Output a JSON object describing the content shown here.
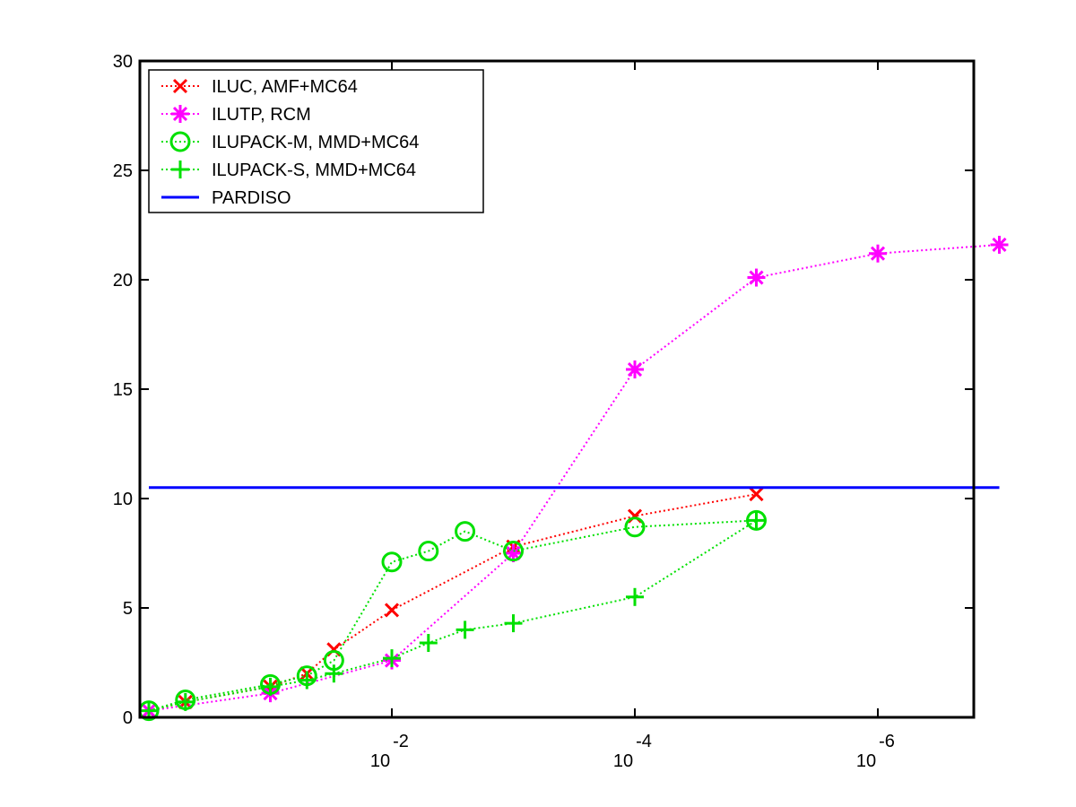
{
  "chart_data": {
    "type": "line",
    "title": "",
    "xlabel": "",
    "ylabel": "",
    "x_scale": "log (reversed, drop tolerance)",
    "xlim": [
      1,
      1e-07
    ],
    "ylim": [
      0,
      30
    ],
    "y_ticks": [
      0,
      5,
      10,
      15,
      20,
      25,
      30
    ],
    "x_ticks": [
      {
        "value": 0.01,
        "base": "10",
        "exp": "-2"
      },
      {
        "value": 0.0001,
        "base": "10",
        "exp": "-4"
      },
      {
        "value": 1e-06,
        "base": "10",
        "exp": "-6"
      }
    ],
    "grid": false,
    "legend_position": "top-left",
    "series": [
      {
        "name": "ILUC, AMF+MC64",
        "color": "#ff0000",
        "marker": "x",
        "line": "dotted",
        "x": [
          1,
          0.5,
          0.1,
          0.05,
          0.03,
          0.01,
          0.001,
          0.0001,
          1e-05
        ],
        "y": [
          0.3,
          0.7,
          1.4,
          2.0,
          3.1,
          4.9,
          7.8,
          9.2,
          10.2
        ]
      },
      {
        "name": "ILUTP, RCM",
        "color": "#ff00ff",
        "marker": "asterisk",
        "line": "dotted",
        "x": [
          1,
          0.1,
          0.01,
          0.001,
          0.0001,
          1e-05,
          1e-06,
          1e-07
        ],
        "y": [
          0.3,
          1.1,
          2.6,
          7.5,
          15.9,
          20.1,
          21.2,
          21.6
        ]
      },
      {
        "name": "ILUPACK-M, MMD+MC64",
        "color": "#00e000",
        "marker": "circle",
        "line": "dotted",
        "x": [
          1,
          0.5,
          0.1,
          0.05,
          0.03,
          0.01,
          0.005,
          0.0025,
          0.001,
          0.0001,
          1e-05
        ],
        "y": [
          0.3,
          0.8,
          1.5,
          1.9,
          2.6,
          7.1,
          7.6,
          8.5,
          7.6,
          8.7,
          9.0
        ]
      },
      {
        "name": "ILUPACK-S, MMD+MC64",
        "color": "#00e000",
        "marker": "plus",
        "line": "dotted",
        "x": [
          1,
          0.5,
          0.1,
          0.05,
          0.03,
          0.01,
          0.005,
          0.0025,
          0.001,
          0.0001,
          1e-05
        ],
        "y": [
          0.3,
          0.7,
          1.4,
          1.7,
          2.0,
          2.7,
          3.4,
          4.0,
          4.3,
          5.5,
          9.0
        ]
      },
      {
        "name": "PARDISO",
        "color": "#0000ff",
        "marker": "none",
        "line": "solid",
        "x": [
          1,
          1e-07
        ],
        "y": [
          10.5,
          10.5
        ]
      }
    ]
  }
}
